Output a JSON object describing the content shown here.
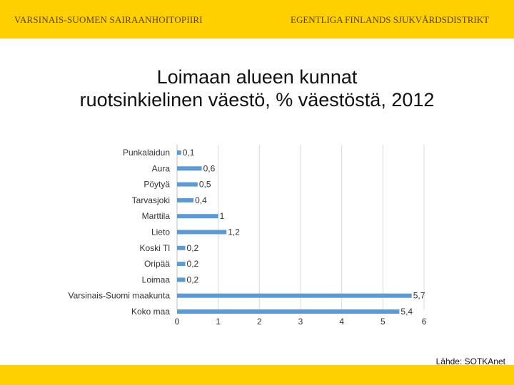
{
  "header": {
    "left_text": "VARSINAIS-SUOMEN SAIRAANHOITOPIIRI",
    "right_text": "EGENTLIGA FINLANDS SJUKVÅRDSDISTRIKT"
  },
  "colors": {
    "band": "#fed000",
    "bar": "#5b9bd5",
    "grid": "#d9d9d9"
  },
  "chart_data": {
    "type": "bar",
    "orientation": "horizontal",
    "title_lines": [
      "Loimaan alueen kunnat",
      "ruotsinkielinen väestö, % väestöstä, 2012"
    ],
    "categories": [
      "Punkalaidun",
      "Aura",
      "Pöytyä",
      "Tarvasjoki",
      "Marttila",
      "Lieto",
      "Koski Tl",
      "Oripää",
      "Loimaa",
      "Varsinais-Suomi maakunta",
      "Koko maa"
    ],
    "values": [
      0.1,
      0.6,
      0.5,
      0.4,
      1,
      1.2,
      0.2,
      0.2,
      0.2,
      5.7,
      5.4
    ],
    "value_labels": [
      "0,1",
      "0,6",
      "0,5",
      "0,4",
      "1",
      "1,2",
      "0,2",
      "0,2",
      "0,2",
      "5,7",
      "5,4"
    ],
    "xlim": [
      0,
      6
    ],
    "xticks": [
      "0",
      "1",
      "2",
      "3",
      "4",
      "5",
      "6"
    ],
    "grid": true,
    "legend": "none"
  },
  "footer": {
    "source": "Lähde: SOTKAnet"
  }
}
